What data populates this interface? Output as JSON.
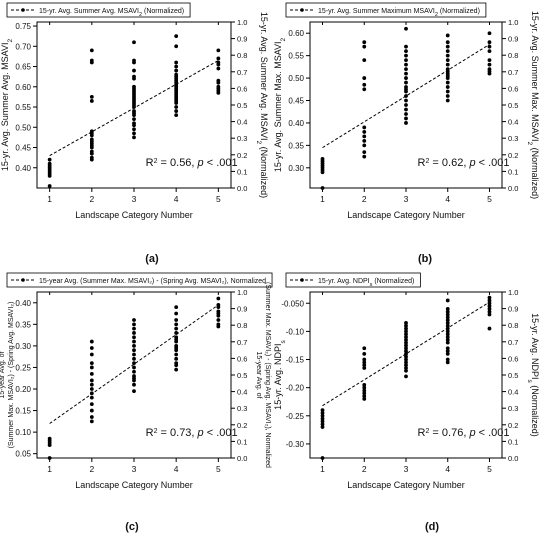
{
  "figure_caption": "",
  "chart_data": [
    {
      "type": "scatter",
      "panel_label": "(a)",
      "xlabel": "Landscape Category Number",
      "ylabel": "15-yr. Avg. Summer Avg. MSAVI",
      "ylabel_sub": "2",
      "ylabel_right": "15-yr. Avg. Summer Avg. MSAVI",
      "ylabel_right_sub": "2",
      "ylabel_right_tail": " (Normalized)",
      "legend": "15-yr. Avg. Summer Avg. MSAVI",
      "legend_sub": "2",
      "legend_tail": " (Normalized)",
      "stat_prefix": "R",
      "stat_sup": "2",
      "stat_mid": " = 0.56, ",
      "stat_p": "p",
      "stat_tail": " < .001",
      "xlim": [
        0.7,
        5.3
      ],
      "xticks": [
        1,
        2,
        3,
        4,
        5
      ],
      "ylim": [
        0.35,
        0.76
      ],
      "yticks": [
        0.4,
        0.45,
        0.5,
        0.55,
        0.6,
        0.65,
        0.7,
        0.75
      ],
      "ytick_labels": [
        "0.40",
        "0.45",
        "0.50",
        "0.55",
        "0.60",
        "0.65",
        "0.70",
        "0.75"
      ],
      "y2lim": [
        0,
        1
      ],
      "y2ticks": [
        0,
        0.1,
        0.2,
        0.3,
        0.4,
        0.5,
        0.6,
        0.7,
        0.8,
        0.9,
        1.0
      ],
      "y2tick_labels": [
        "0.0",
        "0.1",
        "0.2",
        "0.3",
        "0.4",
        "0.5",
        "0.6",
        "0.7",
        "0.8",
        "0.9",
        "1.0"
      ],
      "trend": [
        [
          1,
          0.43
        ],
        [
          5,
          0.665
        ]
      ],
      "points": {
        "1": [
          0.355,
          0.38,
          0.385,
          0.39,
          0.395,
          0.4,
          0.405,
          0.41,
          0.42
        ],
        "2": [
          0.42,
          0.425,
          0.435,
          0.44,
          0.45,
          0.455,
          0.46,
          0.465,
          0.47,
          0.48,
          0.485,
          0.49,
          0.565,
          0.575,
          0.66,
          0.665,
          0.69
        ],
        "3": [
          0.475,
          0.485,
          0.495,
          0.505,
          0.51,
          0.52,
          0.53,
          0.535,
          0.54,
          0.55,
          0.555,
          0.56,
          0.565,
          0.57,
          0.575,
          0.58,
          0.585,
          0.59,
          0.595,
          0.6,
          0.62,
          0.625,
          0.64,
          0.66,
          0.665,
          0.71
        ],
        "4": [
          0.53,
          0.54,
          0.55,
          0.56,
          0.565,
          0.57,
          0.575,
          0.58,
          0.585,
          0.59,
          0.595,
          0.6,
          0.605,
          0.61,
          0.615,
          0.62,
          0.625,
          0.63,
          0.64,
          0.65,
          0.66,
          0.7,
          0.725
        ],
        "5": [
          0.585,
          0.59,
          0.595,
          0.6,
          0.61,
          0.615,
          0.645,
          0.655,
          0.66,
          0.67,
          0.69
        ]
      }
    },
    {
      "type": "scatter",
      "panel_label": "(b)",
      "xlabel": "Landscape Category Number",
      "ylabel": "15-yr. Avg. Summer Max. MSAVI",
      "ylabel_sub": "2",
      "ylabel_right": "15-yr. Avg. Summer Max. MSAVI",
      "ylabel_right_sub": "2",
      "ylabel_right_tail": " (Normalized)",
      "legend": "15-yr. Avg. Summer Maximum MSAVI",
      "legend_sub": "2",
      "legend_tail": " (Normalized)",
      "stat_prefix": "R",
      "stat_sup": "2",
      "stat_mid": " = 0.62, ",
      "stat_p": "p",
      "stat_tail": " < .001",
      "xlim": [
        0.7,
        5.3
      ],
      "xticks": [
        1,
        2,
        3,
        4,
        5
      ],
      "ylim": [
        0.255,
        0.625
      ],
      "yticks": [
        0.3,
        0.35,
        0.4,
        0.45,
        0.5,
        0.55,
        0.6
      ],
      "ytick_labels": [
        "0.30",
        "0.35",
        "0.40",
        "0.45",
        "0.50",
        "0.55",
        "0.60"
      ],
      "y2lim": [
        0,
        1
      ],
      "y2ticks": [
        0,
        0.1,
        0.2,
        0.3,
        0.4,
        0.5,
        0.6,
        0.7,
        0.8,
        0.9,
        1.0
      ],
      "y2tick_labels": [
        "0.0",
        "0.1",
        "0.2",
        "0.3",
        "0.4",
        "0.5",
        "0.6",
        "0.7",
        "0.8",
        "0.9",
        "1.0"
      ],
      "trend": [
        [
          1,
          0.345
        ],
        [
          5,
          0.575
        ]
      ],
      "points": {
        "1": [
          0.255,
          0.29,
          0.295,
          0.3,
          0.305,
          0.31,
          0.315,
          0.32
        ],
        "2": [
          0.325,
          0.335,
          0.35,
          0.36,
          0.37,
          0.38,
          0.39,
          0.475,
          0.485,
          0.5,
          0.54,
          0.57,
          0.58
        ],
        "3": [
          0.4,
          0.41,
          0.42,
          0.43,
          0.44,
          0.45,
          0.46,
          0.47,
          0.475,
          0.48,
          0.49,
          0.5,
          0.51,
          0.52,
          0.53,
          0.54,
          0.55,
          0.56,
          0.57,
          0.61
        ],
        "4": [
          0.45,
          0.46,
          0.47,
          0.48,
          0.49,
          0.5,
          0.505,
          0.51,
          0.515,
          0.52,
          0.53,
          0.54,
          0.55,
          0.56,
          0.57,
          0.58,
          0.595
        ],
        "5": [
          0.51,
          0.515,
          0.52,
          0.53,
          0.54,
          0.56,
          0.57,
          0.58,
          0.6
        ]
      }
    },
    {
      "type": "scatter",
      "panel_label": "(c)",
      "xlabel": "Landscape Category Number",
      "ylabel_lines": [
        "15-year Avg. of",
        "(Summer Max. MSAVI₂) - (Spring  Avg. MSAVI₂)"
      ],
      "ylabel_right_lines": [
        "15-year Avg. of",
        "(Summer Max. MSAVI₂) - (Spring Avg. MSAVI₂), Normalized"
      ],
      "legend": "15-year Avg. (Summer Max. MSAVI₂) - (Spring  Avg. MSAVI₂), Normalized",
      "stat_prefix": "R",
      "stat_sup": "2",
      "stat_mid": " = 0.73, ",
      "stat_p": "p",
      "stat_tail": " < .001",
      "xlim": [
        0.7,
        5.3
      ],
      "xticks": [
        1,
        2,
        3,
        4,
        5
      ],
      "ylim": [
        0.04,
        0.425
      ],
      "yticks": [
        0.05,
        0.1,
        0.15,
        0.2,
        0.25,
        0.3,
        0.35,
        0.4
      ],
      "ytick_labels": [
        "0.05",
        "0.10",
        "0.15",
        "0.20",
        "0.25",
        "0.30",
        "0.35",
        "0.40"
      ],
      "y2lim": [
        0,
        1
      ],
      "y2ticks": [
        0,
        0.1,
        0.2,
        0.3,
        0.4,
        0.5,
        0.6,
        0.7,
        0.8,
        0.9,
        1.0
      ],
      "y2tick_labels": [
        "0.0",
        "0.1",
        "0.2",
        "0.3",
        "0.4",
        "0.5",
        "0.6",
        "0.7",
        "0.8",
        "0.9",
        "1.0"
      ],
      "trend": [
        [
          1,
          0.12
        ],
        [
          5,
          0.395
        ]
      ],
      "points": {
        "1": [
          0.04,
          0.07,
          0.075,
          0.08,
          0.085
        ],
        "2": [
          0.125,
          0.135,
          0.15,
          0.165,
          0.18,
          0.19,
          0.2,
          0.21,
          0.22,
          0.235,
          0.25,
          0.26,
          0.28,
          0.295,
          0.31
        ],
        "3": [
          0.195,
          0.21,
          0.22,
          0.225,
          0.23,
          0.24,
          0.25,
          0.26,
          0.27,
          0.28,
          0.29,
          0.3,
          0.31,
          0.32,
          0.33,
          0.34,
          0.35,
          0.36
        ],
        "4": [
          0.245,
          0.255,
          0.26,
          0.27,
          0.28,
          0.29,
          0.295,
          0.3,
          0.31,
          0.315,
          0.32,
          0.33,
          0.34,
          0.35,
          0.36,
          0.375,
          0.39
        ],
        "5": [
          0.345,
          0.35,
          0.36,
          0.37,
          0.375,
          0.38,
          0.39,
          0.395,
          0.41
        ]
      }
    },
    {
      "type": "scatter",
      "panel_label": "(d)",
      "xlabel": "Landscape Category Number",
      "ylabel": "15-yr. Avg. NDPI",
      "ylabel_sub": "s",
      "ylabel_right": "15-yr. Avg. NDPI",
      "ylabel_right_sub": "s",
      "ylabel_right_tail": " (Normalized)",
      "legend": "15-yr. Avg. NDPI",
      "legend_sub": "s",
      "legend_tail": " (Normalized)",
      "stat_prefix": "R",
      "stat_sup": "2",
      "stat_mid": " = 0.76, ",
      "stat_p": "p",
      "stat_tail": " < .001",
      "xlim": [
        0.7,
        5.3
      ],
      "xticks": [
        1,
        2,
        3,
        4,
        5
      ],
      "ylim": [
        -0.325,
        -0.03
      ],
      "yticks": [
        -0.3,
        -0.25,
        -0.2,
        -0.15,
        -0.1,
        -0.05
      ],
      "ytick_labels": [
        "-0.30",
        "-0.25",
        "-0.20",
        "-0.15",
        "-0.10",
        "-0.050"
      ],
      "y2lim": [
        0,
        1
      ],
      "y2ticks": [
        0,
        0.1,
        0.2,
        0.3,
        0.4,
        0.5,
        0.6,
        0.7,
        0.8,
        0.9,
        1.0
      ],
      "y2tick_labels": [
        "0.0",
        "0.1",
        "0.2",
        "0.3",
        "0.4",
        "0.5",
        "0.6",
        "0.7",
        "0.8",
        "0.9",
        "1.0"
      ],
      "trend": [
        [
          1,
          -0.232
        ],
        [
          5,
          -0.048
        ]
      ],
      "points": {
        "1": [
          -0.325,
          -0.27,
          -0.265,
          -0.26,
          -0.255,
          -0.25,
          -0.245,
          -0.24
        ],
        "2": [
          -0.22,
          -0.215,
          -0.21,
          -0.205,
          -0.2,
          -0.195,
          -0.165,
          -0.16,
          -0.155,
          -0.15,
          -0.14,
          -0.13
        ],
        "3": [
          -0.18,
          -0.17,
          -0.165,
          -0.16,
          -0.155,
          -0.15,
          -0.145,
          -0.14,
          -0.135,
          -0.13,
          -0.125,
          -0.12,
          -0.115,
          -0.11,
          -0.105,
          -0.1,
          -0.095,
          -0.09,
          -0.085
        ],
        "4": [
          -0.155,
          -0.15,
          -0.14,
          -0.135,
          -0.13,
          -0.12,
          -0.115,
          -0.11,
          -0.105,
          -0.1,
          -0.095,
          -0.09,
          -0.085,
          -0.08,
          -0.075,
          -0.07,
          -0.065,
          -0.06,
          -0.045
        ],
        "5": [
          -0.095,
          -0.07,
          -0.065,
          -0.06,
          -0.055,
          -0.05,
          -0.045,
          -0.04
        ]
      }
    }
  ]
}
